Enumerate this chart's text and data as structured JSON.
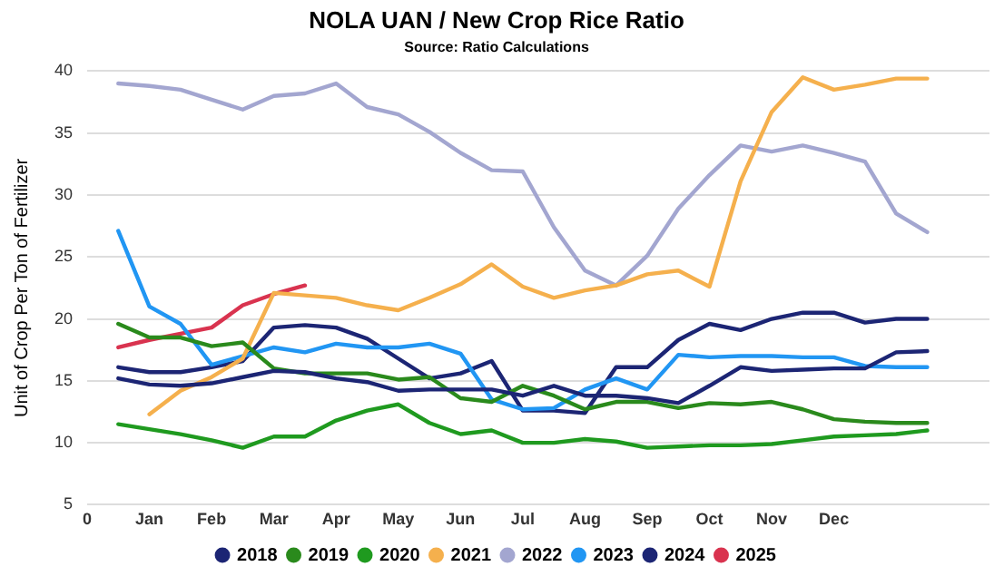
{
  "chart_data": {
    "type": "line",
    "title": "NOLA UAN / New Crop Rice Ratio",
    "subtitle": "Source: Ratio Calculations",
    "ylabel": "Unit of Crop Per Ton of Fertilizer",
    "categories": [
      "0",
      null,
      "Jan",
      null,
      "Feb",
      null,
      "Mar",
      null,
      "Apr",
      null,
      "May",
      null,
      "Jun",
      null,
      "Jul",
      null,
      "Aug",
      null,
      "Sep",
      null,
      "Oct",
      null,
      "Nov",
      null,
      "Dec",
      null,
      null,
      null,
      null,
      null
    ],
    "ylim": [
      5,
      40
    ],
    "yticks": [
      5,
      10,
      15,
      20,
      25,
      30,
      35,
      40
    ],
    "grid": "y",
    "legend": "bottom",
    "marker": "none",
    "line_style": "solid",
    "series": [
      {
        "name": "2018",
        "color": "#1c2574",
        "values": [
          null,
          15.2,
          14.7,
          14.6,
          14.8,
          15.3,
          15.8,
          15.7,
          15.2,
          14.9,
          14.2,
          14.3,
          14.3,
          14.3,
          13.8,
          14.6,
          13.8,
          13.8,
          13.6,
          13.2,
          14.6,
          16.1,
          15.8,
          15.9,
          16.0,
          16.0,
          17.3,
          17.4,
          null,
          null
        ]
      },
      {
        "name": "2019",
        "color": "#2a8a1c",
        "values": [
          null,
          19.6,
          18.5,
          18.5,
          17.8,
          18.1,
          16.0,
          15.6,
          15.6,
          15.6,
          15.1,
          15.3,
          13.6,
          13.3,
          14.6,
          13.8,
          12.7,
          13.3,
          13.3,
          12.8,
          13.2,
          13.1,
          13.3,
          12.7,
          11.9,
          11.7,
          11.6,
          11.6,
          null,
          null
        ]
      },
      {
        "name": "2020",
        "color": "#1f9a1f",
        "values": [
          null,
          11.5,
          11.1,
          10.7,
          10.2,
          9.6,
          10.5,
          10.5,
          11.8,
          12.6,
          13.1,
          11.6,
          10.7,
          11.0,
          10.0,
          10.0,
          10.3,
          10.1,
          9.6,
          9.7,
          9.8,
          9.8,
          9.9,
          10.2,
          10.5,
          10.6,
          10.7,
          11.0,
          null,
          null
        ]
      },
      {
        "name": "2021",
        "color": "#f5b04d",
        "values": [
          null,
          null,
          12.3,
          14.2,
          15.3,
          16.8,
          22.1,
          21.9,
          21.7,
          21.1,
          20.7,
          21.7,
          22.8,
          24.4,
          22.6,
          21.7,
          22.3,
          22.7,
          23.6,
          23.9,
          22.6,
          31.1,
          36.7,
          39.5,
          38.5,
          38.9,
          39.4,
          39.4,
          null,
          null
        ]
      },
      {
        "name": "2022",
        "color": "#a3a6d0",
        "values": [
          null,
          39.0,
          38.8,
          38.5,
          37.7,
          36.9,
          38.0,
          38.2,
          39.0,
          37.1,
          36.5,
          35.1,
          33.4,
          32.0,
          31.9,
          27.4,
          23.9,
          22.7,
          25.1,
          28.9,
          31.6,
          34.0,
          33.5,
          34.0,
          33.4,
          32.7,
          28.5,
          27.0,
          null,
          null
        ]
      },
      {
        "name": "2023",
        "color": "#2196f3",
        "values": [
          null,
          27.1,
          21.0,
          19.6,
          16.3,
          17.0,
          17.7,
          17.3,
          18.0,
          17.7,
          17.7,
          18.0,
          17.2,
          13.5,
          12.7,
          12.8,
          14.3,
          15.2,
          14.3,
          17.1,
          16.9,
          17.0,
          17.0,
          16.9,
          16.9,
          16.2,
          16.1,
          16.1,
          null,
          null
        ]
      },
      {
        "name": "2024",
        "color": "#1c2574",
        "values": [
          null,
          16.1,
          15.7,
          15.7,
          16.1,
          16.6,
          19.3,
          19.5,
          19.3,
          18.4,
          16.8,
          15.2,
          15.6,
          16.6,
          12.6,
          12.6,
          12.4,
          16.1,
          16.1,
          18.3,
          19.6,
          19.1,
          20.0,
          20.5,
          20.5,
          19.7,
          20.0,
          20.0,
          null,
          null
        ]
      },
      {
        "name": "2025",
        "color": "#d9334f",
        "values": [
          null,
          17.7,
          18.3,
          18.8,
          19.3,
          21.1,
          22.0,
          22.7,
          null,
          null,
          null,
          null,
          null,
          null,
          null,
          null,
          null,
          null,
          null,
          null,
          null,
          null,
          null,
          null,
          null,
          null,
          null,
          null,
          null,
          null
        ]
      }
    ]
  }
}
